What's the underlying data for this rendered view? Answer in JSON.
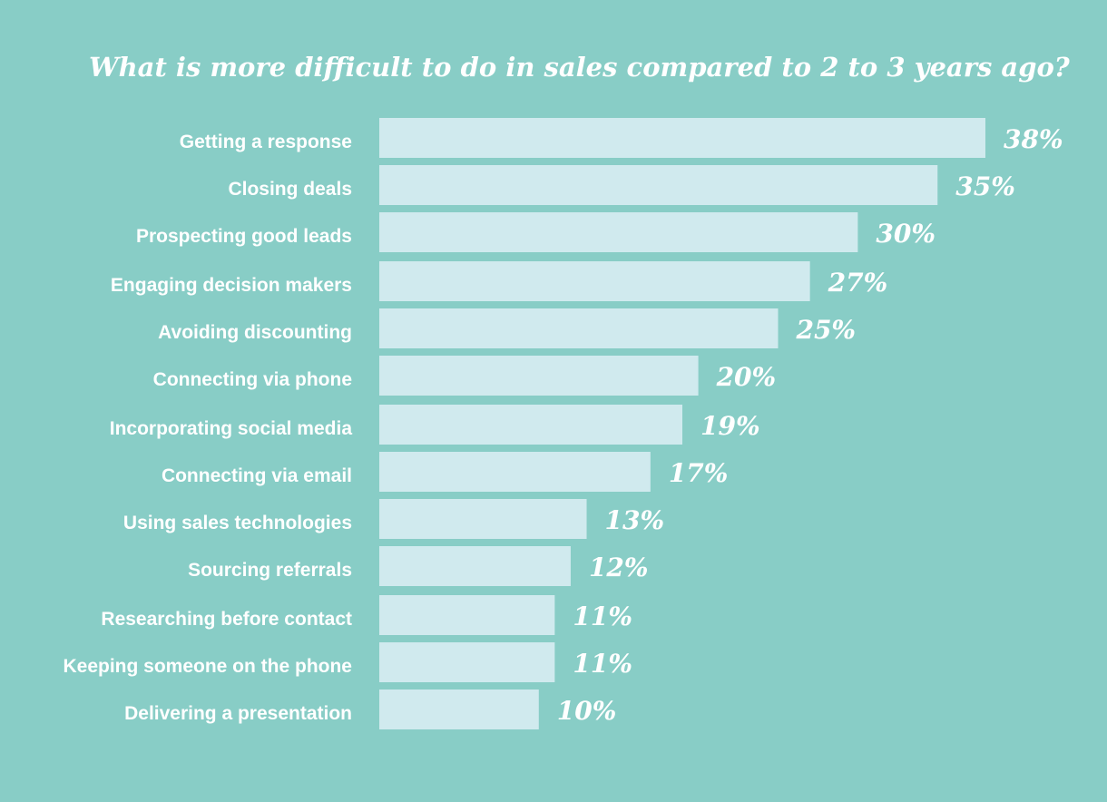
{
  "chart_data": {
    "type": "bar",
    "orientation": "horizontal",
    "title": "What is more difficult to do in sales compared to 2 to 3 years ago?",
    "categories": [
      "Getting a response",
      "Closing deals",
      "Prospecting good leads",
      "Engaging decision makers",
      "Avoiding discounting",
      "Connecting via phone",
      "Incorporating social media",
      "Connecting via email",
      "Using sales technologies",
      "Sourcing referrals",
      "Researching before contact",
      "Keeping someone on the phone",
      "Delivering a presentation"
    ],
    "values": [
      38,
      35,
      30,
      27,
      25,
      20,
      19,
      17,
      13,
      12,
      11,
      11,
      10
    ],
    "value_labels": [
      "38%",
      "35%",
      "30%",
      "27%",
      "25%",
      "20%",
      "19%",
      "17%",
      "13%",
      "12%",
      "11%",
      "11%",
      "10%"
    ],
    "unit": "%",
    "xlim": [
      0,
      38
    ],
    "grid": false,
    "legend": "none",
    "colors": {
      "background": "#88cdc6",
      "bar": "#d0eaee",
      "text": "#ffffff"
    }
  }
}
